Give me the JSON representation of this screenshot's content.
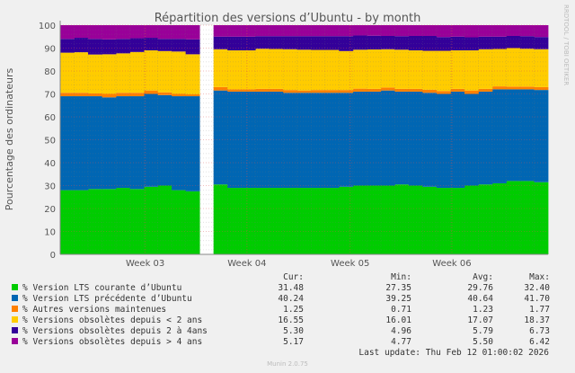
{
  "chart_data": {
    "type": "area",
    "stacked": true,
    "title": "Répartition des versions d’Ubuntu - by month",
    "ylabel": "Pourcentage des ordinateurs",
    "ylim": [
      0,
      100
    ],
    "yticks": [
      0,
      10,
      20,
      30,
      40,
      50,
      60,
      70,
      80,
      90,
      100
    ],
    "grid": true,
    "xticks": [
      {
        "label": "Week 03",
        "index": 6.1
      },
      {
        "label": "Week 04",
        "index": 13.4
      },
      {
        "label": "Week 05",
        "index": 20.8
      },
      {
        "label": "Week 06",
        "index": 28.1
      }
    ],
    "gap_index": 10,
    "series": [
      {
        "name": "% Version LTS courante d’Ubuntu",
        "color": "#00cc00",
        "values": [
          28,
          28,
          28.5,
          28.5,
          29,
          28.5,
          29.5,
          30,
          28,
          27.5,
          null,
          30.5,
          29,
          29,
          29,
          29,
          29,
          29,
          29,
          29,
          29.5,
          30,
          30,
          30,
          30.5,
          30,
          29.5,
          29,
          29,
          30,
          30.5,
          31,
          32,
          32,
          31.48
        ]
      },
      {
        "name": "% Version LTS précédente d’Ubuntu",
        "color": "#0066b3",
        "values": [
          41,
          41,
          40.5,
          40,
          40,
          40.5,
          40.5,
          39.5,
          41,
          41.5,
          null,
          41,
          42,
          42,
          42,
          42,
          41.5,
          41.5,
          41.5,
          41.5,
          41,
          41,
          41,
          41.5,
          40.5,
          41,
          41,
          41,
          42,
          40,
          40.5,
          41,
          40,
          40,
          40.24
        ]
      },
      {
        "name": "% Autres versions maintenues",
        "color": "#ff8000",
        "values": [
          1.5,
          1.5,
          1.2,
          1.5,
          1.5,
          1.5,
          1.5,
          1.2,
          1,
          0.8,
          null,
          1.5,
          1,
          1,
          1.2,
          1.2,
          1.2,
          1,
          1.2,
          1.2,
          1.2,
          1.3,
          1.2,
          1.3,
          1.2,
          1.2,
          1.3,
          1.3,
          1.2,
          1.5,
          1.2,
          1.3,
          1.2,
          1.2,
          1.25
        ]
      },
      {
        "name": "% Versions obsolètes depuis < 2 ans",
        "color": "#ffcc00",
        "values": [
          17.5,
          17.7,
          17,
          17.3,
          17.2,
          17.8,
          17.5,
          18,
          18.5,
          17.5,
          null,
          16.5,
          17,
          17,
          17.5,
          17.4,
          17.8,
          17.8,
          17.5,
          17.5,
          17,
          17,
          17.2,
          16.7,
          17.1,
          16.8,
          17,
          17.5,
          16.8,
          17.5,
          17.3,
          16.3,
          16.8,
          16.5,
          16.55
        ]
      },
      {
        "name": "% Versions obsolètes depuis 2 à 4ans",
        "color": "#330099",
        "values": [
          6,
          6.3,
          6.8,
          6.5,
          6.3,
          6,
          5.5,
          5.3,
          5.5,
          6.5,
          null,
          5.5,
          6,
          6,
          5.5,
          5.6,
          5.7,
          5.9,
          6,
          6,
          6.5,
          6.2,
          6,
          5.8,
          5.9,
          6.3,
          6.5,
          6,
          6,
          5.7,
          5.5,
          5.4,
          5.3,
          5.5,
          5.3
        ]
      },
      {
        "name": "% Versions obsolètes depuis > 4 ans",
        "color": "#990099",
        "values": [
          6,
          5.5,
          6,
          6.2,
          6,
          5.7,
          5.5,
          6,
          6,
          6.2,
          null,
          5,
          5,
          5,
          4.8,
          4.8,
          4.8,
          4.8,
          4.8,
          4.8,
          4.8,
          4.5,
          4.6,
          4.7,
          4.8,
          4.7,
          4.7,
          5.2,
          5,
          5.3,
          5,
          5,
          4.7,
          4.8,
          5.17
        ]
      }
    ],
    "legend": {
      "placement": "bottom",
      "headers": [
        "Cur:",
        "Min:",
        "Avg:",
        "Max:"
      ],
      "rows": [
        [
          "31.48",
          "27.35",
          "29.76",
          "32.40"
        ],
        [
          "40.24",
          "39.25",
          "40.64",
          "41.70"
        ],
        [
          "1.25",
          "0.71",
          "1.23",
          "1.77"
        ],
        [
          "16.55",
          "16.01",
          "17.07",
          "18.37"
        ],
        [
          "5.30",
          "4.96",
          "5.79",
          "6.73"
        ],
        [
          "5.17",
          "4.77",
          "5.50",
          "6.42"
        ]
      ]
    },
    "last_update": "Last update: Thu Feb 12 01:00:02 2026",
    "footer": "Munin 2.0.75",
    "watermark": "RRDTOOL / TOBI OETIKER"
  }
}
